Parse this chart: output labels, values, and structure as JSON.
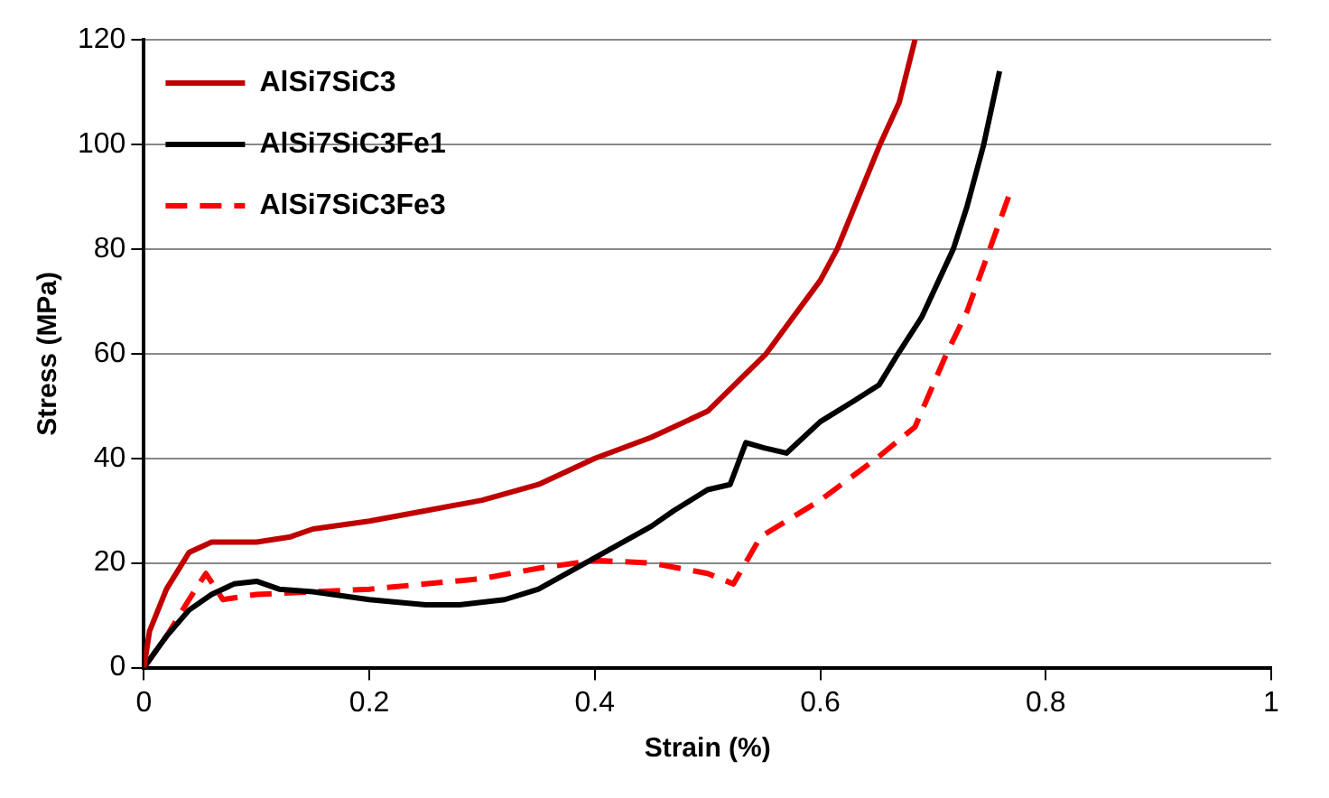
{
  "chart_data": {
    "type": "line",
    "xlabel": "Strain (%)",
    "ylabel": "Stress (MPa)",
    "xlim": [
      0,
      1
    ],
    "xticks": [
      0,
      0.2,
      0.4,
      0.6,
      0.8,
      1
    ],
    "ylim": [
      0,
      120
    ],
    "yticks": [
      0,
      20,
      40,
      60,
      80,
      100,
      120
    ],
    "grid": "y",
    "legend": "top left",
    "marker": "none",
    "series": [
      {
        "name": "AlSi7SiC3",
        "color": "#c00000",
        "line_style": "solid",
        "x": [
          0,
          0.005,
          0.02,
          0.04,
          0.06,
          0.1,
          0.13,
          0.15,
          0.2,
          0.25,
          0.3,
          0.35,
          0.4,
          0.45,
          0.5,
          0.552,
          0.6,
          0.615,
          0.653,
          0.67,
          0.684
        ],
        "values": [
          0,
          7,
          15,
          22,
          24,
          24,
          25,
          26.5,
          28,
          30,
          32,
          35,
          40,
          44,
          49,
          60,
          74,
          80,
          100,
          108,
          120
        ]
      },
      {
        "name": "AlSi7SiC3Fe1",
        "color": "#000000",
        "line_style": "solid",
        "x": [
          0,
          0.02,
          0.04,
          0.06,
          0.08,
          0.1,
          0.12,
          0.15,
          0.2,
          0.25,
          0.28,
          0.32,
          0.35,
          0.4,
          0.45,
          0.47,
          0.5,
          0.52,
          0.534,
          0.55,
          0.57,
          0.6,
          0.63,
          0.652,
          0.669,
          0.69,
          0.718,
          0.73,
          0.745,
          0.759
        ],
        "values": [
          0,
          6,
          11,
          14,
          16,
          16.5,
          15,
          14.5,
          13,
          12,
          12,
          13,
          15,
          21,
          27,
          30,
          34,
          35,
          43,
          42,
          41,
          47,
          51,
          54,
          60,
          67,
          80,
          88,
          100,
          114
        ]
      },
      {
        "name": "AlSi7SiC3Fe3",
        "color": "#ff0000",
        "line_style": "dashed",
        "x": [
          0,
          0.02,
          0.04,
          0.055,
          0.07,
          0.1,
          0.15,
          0.2,
          0.25,
          0.3,
          0.35,
          0.4,
          0.45,
          0.5,
          0.523,
          0.547,
          0.6,
          0.65,
          0.684,
          0.712,
          0.73,
          0.747,
          0.767
        ],
        "values": [
          0,
          6,
          13,
          18,
          13,
          14,
          14.5,
          15,
          16,
          17,
          19,
          20.5,
          20,
          18,
          16,
          25,
          32,
          40,
          46,
          60,
          68,
          78,
          90
        ]
      }
    ]
  }
}
